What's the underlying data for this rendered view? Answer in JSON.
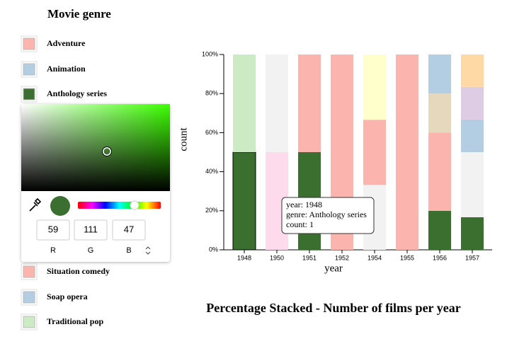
{
  "legend_panel": {
    "title": "Movie genre",
    "items": [
      {
        "name": "Adventure",
        "color": "#fbb4ae"
      },
      {
        "name": "Animation",
        "color": "#b3cde3"
      },
      {
        "name": "Anthology series",
        "color": "#3b6f2f"
      },
      {
        "name": "Situation comedy",
        "color": "#fbb4ae"
      },
      {
        "name": "Soap opera",
        "color": "#b3cde3"
      },
      {
        "name": "Traditional pop",
        "color": "#ccebc5"
      }
    ]
  },
  "color_picker": {
    "values": [
      59,
      111,
      47
    ],
    "labels": [
      "R",
      "G",
      "B"
    ],
    "color": "#3b6f2f",
    "hue_color": "#3cff00"
  },
  "tooltip": {
    "lines": [
      "year: 1948",
      "genre: Anthology series",
      "count: 1"
    ]
  },
  "chart_data": {
    "type": "stacked_bar",
    "title": "Percentage Stacked - Number of films per year",
    "x_label": "year",
    "y_label": "count",
    "categories": [
      "1948",
      "1950",
      "1951",
      "1952",
      "1954",
      "1955",
      "1956",
      "1957"
    ],
    "series": [
      {
        "color": "#3b6f2f",
        "values": [
          50,
          0,
          50,
          0,
          0,
          0,
          20,
          16.7
        ]
      },
      {
        "color": "#fddaec",
        "values": [
          0,
          50,
          0,
          0,
          0,
          0,
          0,
          0
        ]
      },
      {
        "color": "#f2f2f2",
        "values": [
          0,
          50,
          0,
          0,
          33.3,
          0,
          0,
          33.3
        ]
      },
      {
        "color": "#fbb4ae",
        "values": [
          0,
          0,
          50,
          100,
          33.3,
          100,
          40,
          0
        ]
      },
      {
        "color": "#ffffcc",
        "values": [
          0,
          0,
          0,
          0,
          33.4,
          0,
          0,
          0
        ]
      },
      {
        "color": "#e5d8bd",
        "values": [
          0,
          0,
          0,
          0,
          0,
          0,
          20,
          0
        ]
      },
      {
        "color": "#b3cde3",
        "values": [
          0,
          0,
          0,
          0,
          0,
          0,
          20,
          16.7
        ]
      },
      {
        "color": "#decbe4",
        "values": [
          0,
          0,
          0,
          0,
          0,
          0,
          0,
          16.7
        ]
      },
      {
        "color": "#fed9a6",
        "values": [
          0,
          0,
          0,
          0,
          0,
          0,
          0,
          16.6
        ]
      },
      {
        "color": "#ccebc5",
        "values": [
          50,
          0,
          0,
          0,
          0,
          0,
          0,
          0
        ]
      }
    ],
    "ylim": [
      0,
      100
    ],
    "yticks": [
      {
        "value": 0,
        "label": "0%"
      },
      {
        "value": 20,
        "label": "20%"
      },
      {
        "value": 40,
        "label": "40%"
      },
      {
        "value": 60,
        "label": "60%"
      },
      {
        "value": 80,
        "label": "80%"
      },
      {
        "value": 100,
        "label": "100%"
      }
    ]
  }
}
